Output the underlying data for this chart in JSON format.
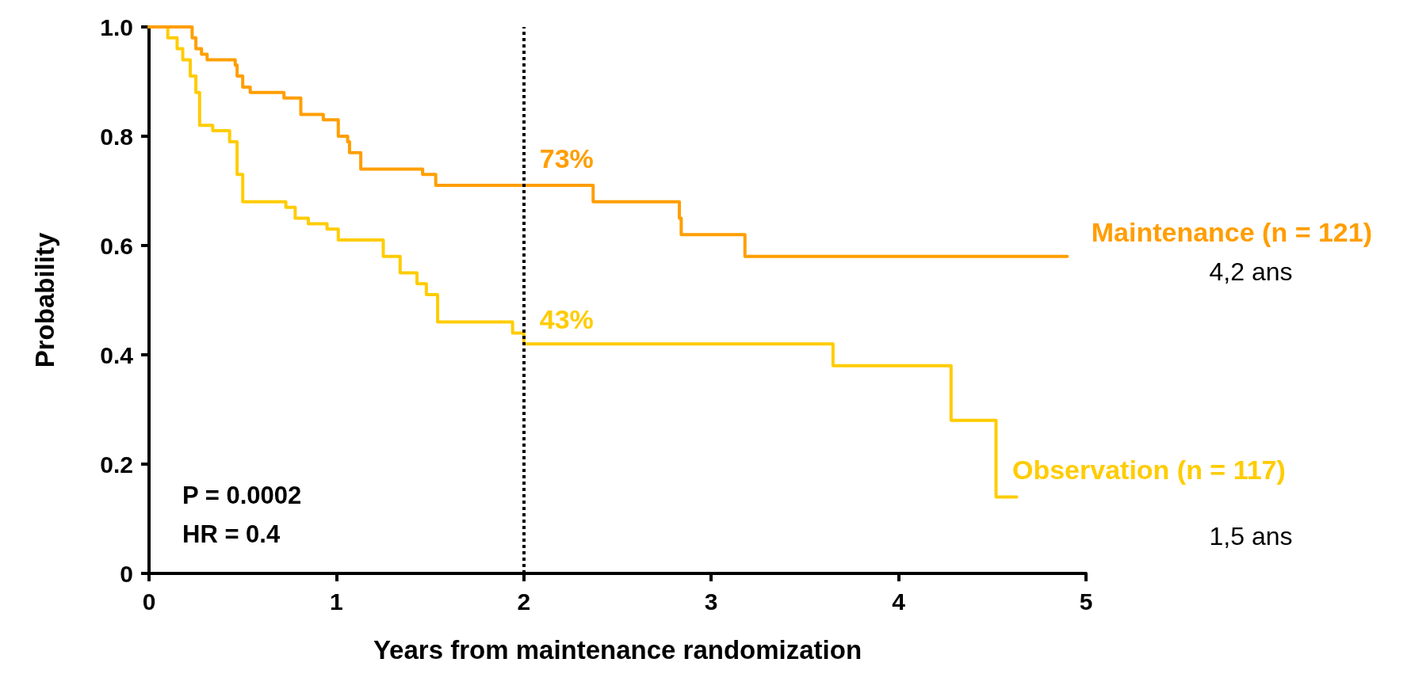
{
  "chart_data": {
    "type": "step",
    "xlabel": "Years from maintenance randomization",
    "ylabel": "Probability",
    "xlim": [
      0,
      5
    ],
    "xticks": [
      0,
      1,
      2,
      3,
      4,
      5
    ],
    "ylim": [
      0,
      1
    ],
    "yticks": [
      0,
      {
        "value": 0.2,
        "label": "0.2"
      },
      {
        "value": 0.4,
        "label": "0.4"
      },
      {
        "value": 0.6,
        "label": "0.6"
      },
      {
        "value": 0.8,
        "label": "0.8"
      },
      {
        "value": 1,
        "label": "1.0"
      }
    ],
    "grid": false,
    "legend": false,
    "marker": "none",
    "line_style": "solid",
    "series": [
      {
        "name": "Maintenance (n = 121)",
        "color": "#ff9e00",
        "x": [
          0,
          0.23,
          0.25,
          0.28,
          0.31,
          0.46,
          0.47,
          0.5,
          0.54,
          0.72,
          0.81,
          0.93,
          1.01,
          1.06,
          1.07,
          1.13,
          1.46,
          1.53,
          2.37,
          2.83,
          2.84,
          3.18,
          4.9
        ],
        "values": [
          1.0,
          0.98,
          0.96,
          0.95,
          0.94,
          0.93,
          0.91,
          0.89,
          0.88,
          0.87,
          0.84,
          0.83,
          0.8,
          0.79,
          0.77,
          0.74,
          0.73,
          0.71,
          0.68,
          0.65,
          0.62,
          0.58,
          0.58
        ]
      },
      {
        "name": "Observation (n = 117)",
        "color": "#ffcc00",
        "x": [
          0,
          0.1,
          0.15,
          0.18,
          0.22,
          0.25,
          0.27,
          0.34,
          0.43,
          0.47,
          0.5,
          0.73,
          0.78,
          0.85,
          0.95,
          1.01,
          1.25,
          1.34,
          1.43,
          1.48,
          1.54,
          1.94,
          2.0,
          3.65,
          4.28,
          4.52,
          4.63
        ],
        "values": [
          1.0,
          0.98,
          0.96,
          0.94,
          0.91,
          0.88,
          0.82,
          0.81,
          0.79,
          0.73,
          0.68,
          0.67,
          0.65,
          0.64,
          0.63,
          0.61,
          0.58,
          0.55,
          0.53,
          0.51,
          0.46,
          0.44,
          0.42,
          0.38,
          0.28,
          0.14,
          0.14
        ]
      }
    ],
    "ref_lines": [
      {
        "axis": "x",
        "value": 2,
        "color": "#000000",
        "line_style": "dotted"
      }
    ],
    "annotations": [
      {
        "text": "73%",
        "x": 2,
        "y": 0.71
      },
      {
        "text": "43%",
        "x": 2,
        "y": 0.43
      },
      "4,2 ans",
      "1,5 ans",
      "P = 0.0002",
      "HR = 0.4"
    ]
  }
}
